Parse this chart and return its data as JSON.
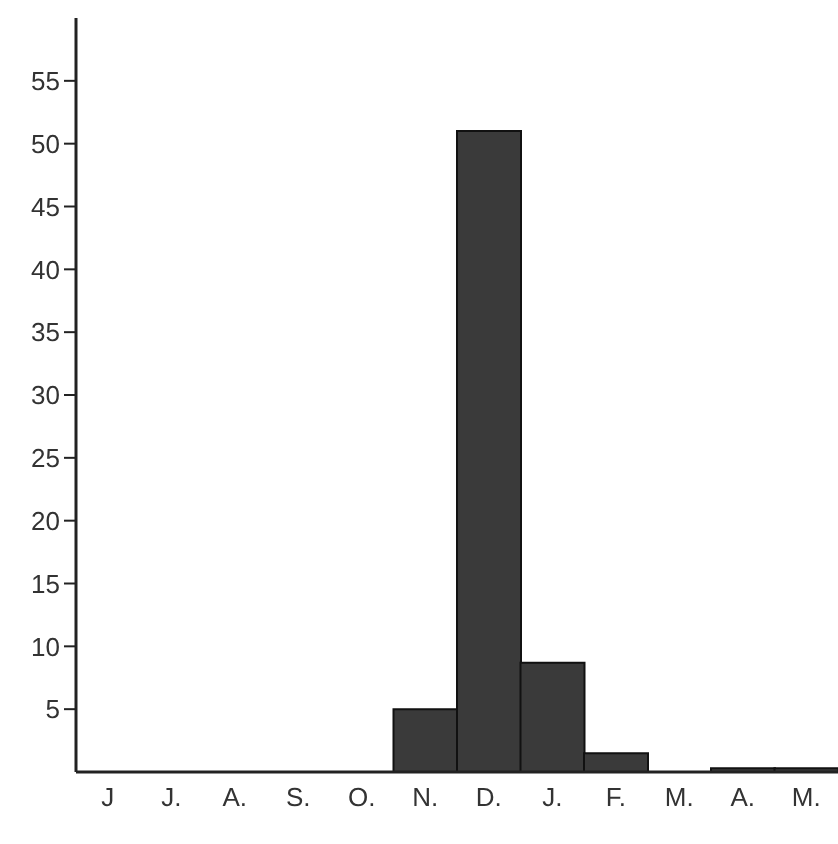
{
  "chart_data": {
    "type": "bar",
    "categories": [
      "J",
      "J.",
      "A.",
      "S.",
      "O.",
      "N.",
      "D.",
      "J.",
      "F.",
      "M.",
      "A.",
      "M."
    ],
    "values": [
      0,
      0,
      0,
      null,
      0,
      5,
      51,
      8.7,
      1.5,
      0,
      0.3,
      0.3
    ],
    "color": "#3a3a3a",
    "ylim": [
      0,
      60
    ],
    "yticks": [
      5,
      10,
      15,
      20,
      25,
      30,
      35,
      40,
      45,
      50,
      55
    ],
    "grid": false,
    "legend": false
  }
}
